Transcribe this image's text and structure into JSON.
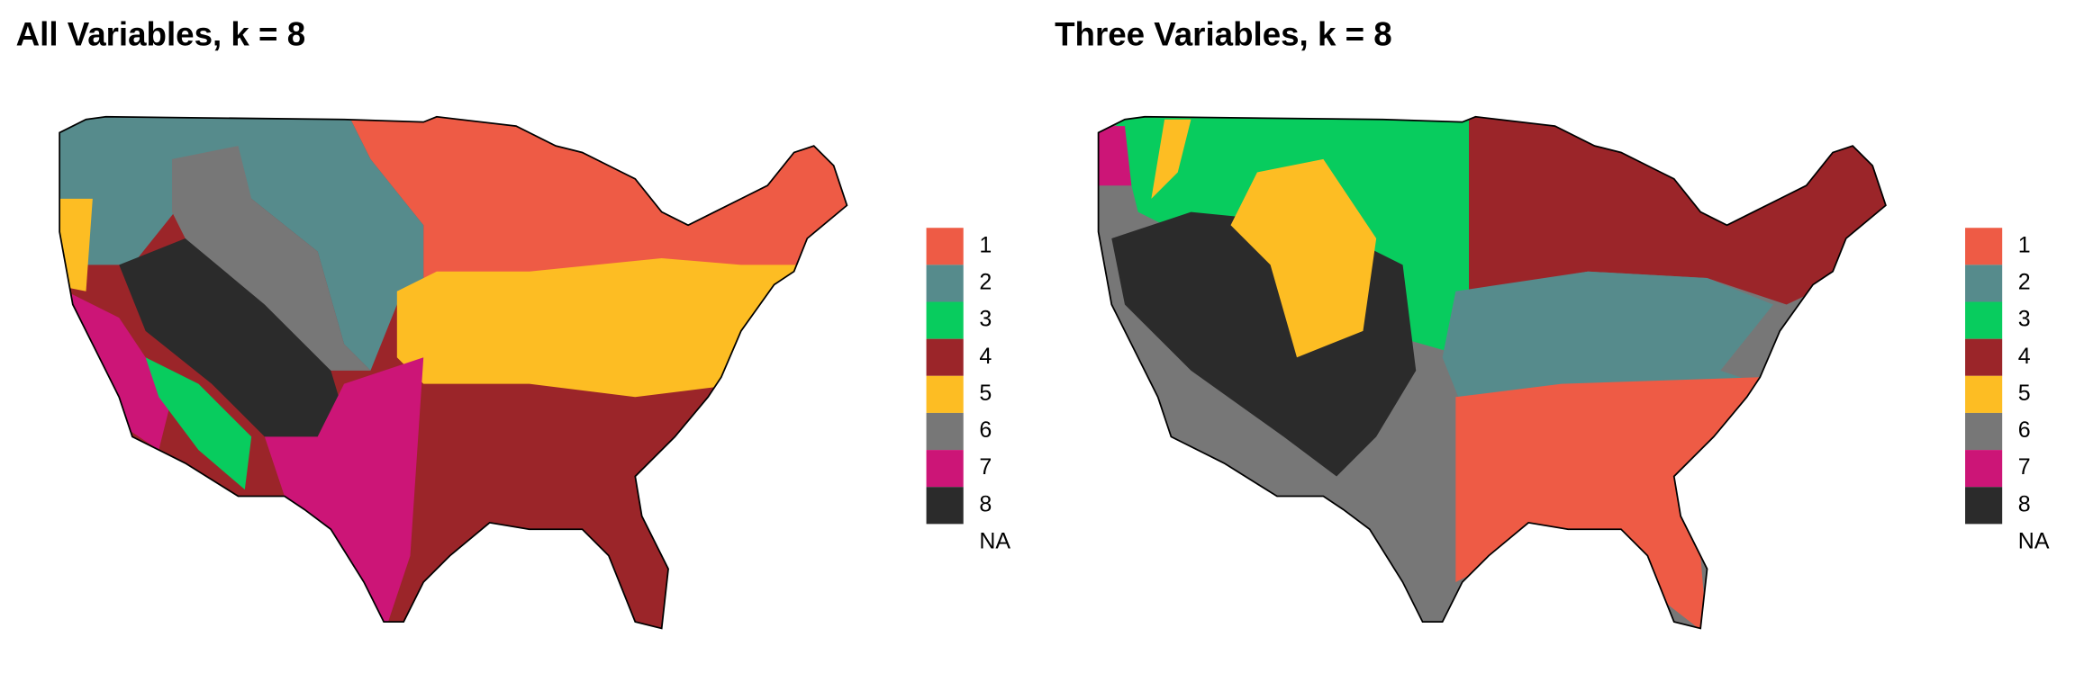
{
  "maps": [
    {
      "title": "All Variables, k = 8",
      "legend": {
        "items": [
          {
            "label": "1",
            "color": "#ee5b45"
          },
          {
            "label": "2",
            "color": "#568b8c"
          },
          {
            "label": "3",
            "color": "#08cc5e"
          },
          {
            "label": "4",
            "color": "#9b2529"
          },
          {
            "label": "5",
            "color": "#fdbd23"
          },
          {
            "label": "6",
            "color": "#777777"
          },
          {
            "label": "7",
            "color": "#cc1577"
          },
          {
            "label": "8",
            "color": "#2b2b2b"
          },
          {
            "label": "NA"
          }
        ]
      }
    },
    {
      "title": "Three Variables, k = 8",
      "legend": {
        "items": [
          {
            "label": "1",
            "color": "#ee5b45"
          },
          {
            "label": "2",
            "color": "#568b8c"
          },
          {
            "label": "3",
            "color": "#08cc5e"
          },
          {
            "label": "4",
            "color": "#9b2529"
          },
          {
            "label": "5",
            "color": "#fdbd23"
          },
          {
            "label": "6",
            "color": "#777777"
          },
          {
            "label": "7",
            "color": "#cc1577"
          },
          {
            "label": "8",
            "color": "#2b2b2b"
          },
          {
            "label": "NA"
          }
        ]
      }
    }
  ]
}
